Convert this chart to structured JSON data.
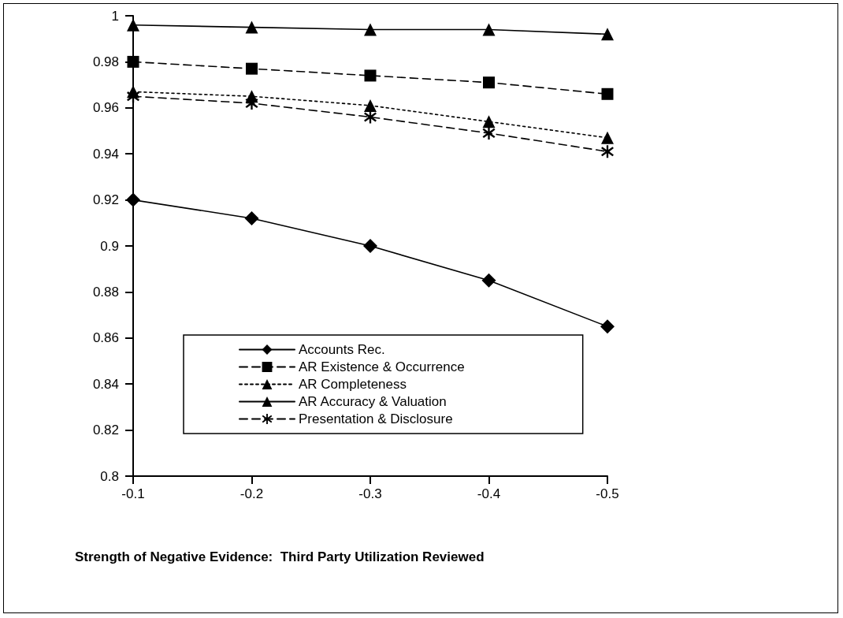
{
  "chart_data": {
    "type": "line",
    "xlabel": "Strength of Negative Evidence:  Third Party Utilization Reviewed",
    "categories": [
      "-0.1",
      "-0.2",
      "-0.3",
      "-0.4",
      "-0.5"
    ],
    "ylim": [
      0.8,
      1
    ],
    "yticks": [
      0.8,
      0.82,
      0.84,
      0.86,
      0.88,
      0.9,
      0.92,
      0.94,
      0.96,
      0.98,
      1
    ],
    "grid": false,
    "legend": "bottom",
    "series": [
      {
        "name": "Accounts Rec.",
        "color": "#000000",
        "marker": "diamond",
        "line_style": "solid",
        "values": [
          0.92,
          0.912,
          0.9,
          0.885,
          0.865
        ]
      },
      {
        "name": "AR Existence & Occurrence",
        "color": "#000000",
        "marker": "square",
        "line_style": "dashed",
        "values": [
          0.98,
          0.977,
          0.974,
          0.971,
          0.966
        ]
      },
      {
        "name": "AR Completeness",
        "color": "#000000",
        "marker": "triangle",
        "line_style": "dotted",
        "values": [
          0.967,
          0.965,
          0.961,
          0.954,
          0.947
        ]
      },
      {
        "name": "AR Accuracy & Valuation",
        "color": "#000000",
        "marker": "triangle",
        "line_style": "solid",
        "values": [
          0.996,
          0.995,
          0.994,
          0.994,
          0.992
        ]
      },
      {
        "name": "Presentation & Disclosure",
        "color": "#000000",
        "marker": "cross",
        "line_style": "dashed",
        "values": [
          0.965,
          0.962,
          0.956,
          0.949,
          0.941
        ]
      }
    ]
  }
}
